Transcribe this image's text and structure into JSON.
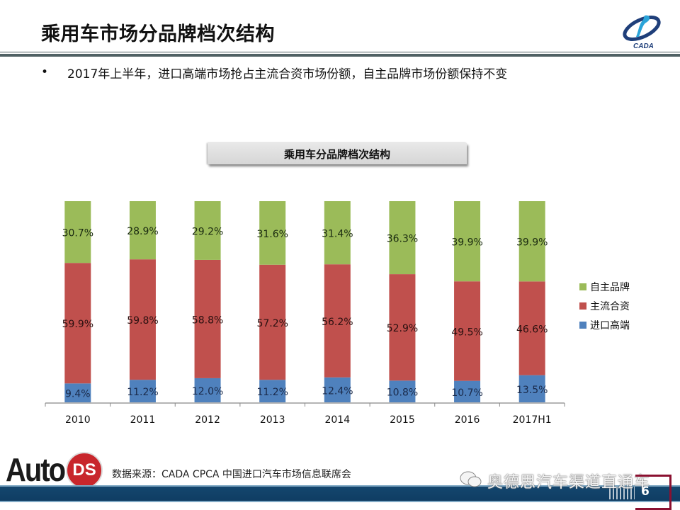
{
  "slide": {
    "title": "乘用车市场分品牌档次结构",
    "bullet_symbol": "•",
    "bullet_text": "2017年上半年，进口高端市场抢占主流合资市场份额，自主品牌市场份额保持不变",
    "chart_box_title": "乘用车分品牌档次结构",
    "source": "数据来源：CADA  CPCA  中国进口汽车市场信息联席会",
    "watermark": "奥德思汽车渠道直通车",
    "page_number": "6",
    "logo_top_text": "CADA",
    "logo_bottom_word": "Auto",
    "logo_bottom_badge": "DS"
  },
  "chart_data": {
    "type": "bar",
    "stacked": true,
    "title": "乘用车分品牌档次结构",
    "xlabel": "",
    "ylabel": "",
    "ylim": [
      0,
      100
    ],
    "grid": false,
    "legend_position": "right",
    "categories": [
      "2010",
      "2011",
      "2012",
      "2013",
      "2014",
      "2015",
      "2016",
      "2017H1"
    ],
    "series": [
      {
        "name": "进口高端",
        "color": "#4f81bd",
        "values": [
          9.4,
          11.2,
          12.0,
          11.2,
          12.4,
          10.8,
          10.7,
          13.5
        ],
        "labels": [
          "9.4%",
          "11.2%",
          "12.0%",
          "11.2%",
          "12.4%",
          "10.8%",
          "10.7%",
          "13.5%"
        ]
      },
      {
        "name": "主流合资",
        "color": "#c0504d",
        "values": [
          59.9,
          59.8,
          58.8,
          57.2,
          56.2,
          52.9,
          49.5,
          46.6
        ],
        "labels": [
          "59.9%",
          "59.8%",
          "58.8%",
          "57.2%",
          "56.2%",
          "52.9%",
          "49.5%",
          "46.6%"
        ]
      },
      {
        "name": "自主品牌",
        "color": "#9bbb59",
        "values": [
          30.7,
          28.9,
          29.2,
          31.6,
          31.4,
          36.3,
          39.9,
          39.9
        ],
        "labels": [
          "30.7%",
          "28.9%",
          "29.2%",
          "31.6%",
          "31.4%",
          "36.3%",
          "39.9%",
          "39.9%"
        ]
      }
    ],
    "legend_order": [
      "自主品牌",
      "主流合资",
      "进口高端"
    ]
  }
}
